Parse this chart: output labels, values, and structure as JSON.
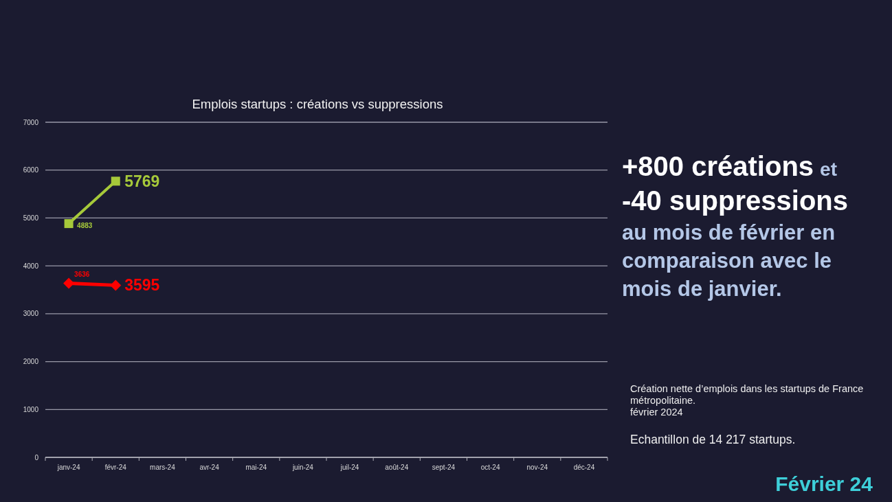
{
  "chart_data": {
    "type": "line",
    "title": "Emplois startups : créations vs suppressions",
    "categories": [
      "janv-24",
      "févr-24",
      "mars-24",
      "avr-24",
      "mai-24",
      "juin-24",
      "juil-24",
      "août-24",
      "sept-24",
      "oct-24",
      "nov-24",
      "déc-24"
    ],
    "series": [
      {
        "color": "#a6c93a",
        "marker": "square",
        "values": [
          4883,
          5769,
          null,
          null,
          null,
          null,
          null,
          null,
          null,
          null,
          null,
          null
        ]
      },
      {
        "color": "#ff0000",
        "marker": "diamond",
        "values": [
          3636,
          3595,
          null,
          null,
          null,
          null,
          null,
          null,
          null,
          null,
          null,
          null
        ]
      }
    ],
    "ylim": [
      0,
      7000
    ],
    "yticks": [
      0,
      1000,
      2000,
      3000,
      4000,
      5000,
      6000,
      7000
    ],
    "grid": "y",
    "data_labels": true,
    "line_style": "solid",
    "annotations": [
      "+800 créations",
      "et",
      "-40 suppressions",
      "au mois de février en comparaison avec le mois de janvier.",
      "Création nette d’emplois dans les startups de France métropolitaine.",
      "février 2024",
      "Echantillon de 14 217 startups.",
      "Février 24"
    ]
  }
}
